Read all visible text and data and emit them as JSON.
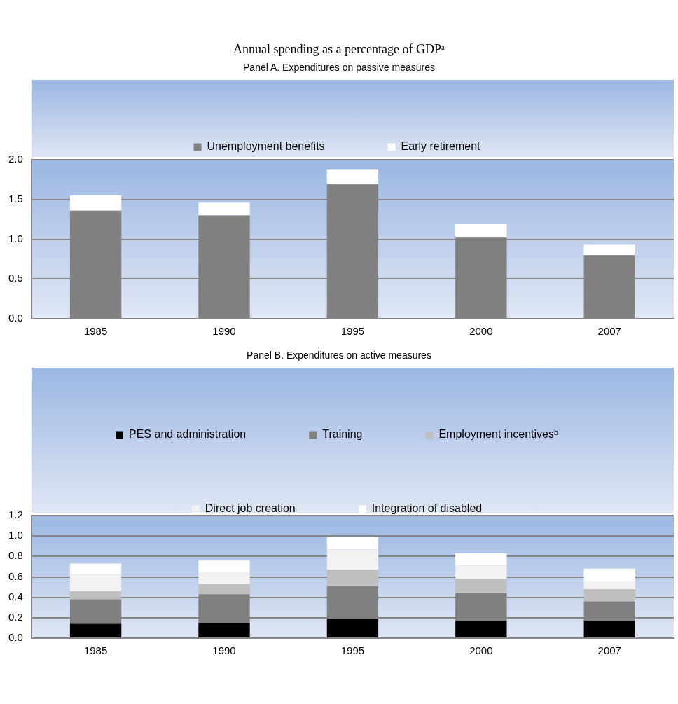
{
  "chart_data": [
    {
      "type": "bar",
      "title": "Annual spending as a percentage of GDPᵃ",
      "subtitle": "Panel A. Expenditures on passive measures",
      "categories": [
        "1985",
        "1990",
        "1995",
        "2000",
        "2007"
      ],
      "stacked": true,
      "series": [
        {
          "name": "Unemployment benefits",
          "color": "#808080",
          "values": [
            1.36,
            1.3,
            1.69,
            1.02,
            0.8
          ]
        },
        {
          "name": "Early retirement",
          "color": "#ffffff",
          "values": [
            0.19,
            0.16,
            0.19,
            0.17,
            0.13
          ]
        }
      ],
      "ylim": [
        0,
        2
      ],
      "yticks": [
        {
          "value": 0,
          "label": "0.0"
        },
        {
          "value": 0.5,
          "label": "0.5"
        },
        {
          "value": 1,
          "label": "1.0"
        },
        {
          "value": 1.5,
          "label": "1.5"
        },
        {
          "value": 2,
          "label": "2.0"
        }
      ],
      "grid": "y",
      "legend": "top"
    },
    {
      "type": "bar",
      "title": "Panel B. Expenditures on active measures",
      "categories": [
        "1985",
        "1990",
        "1995",
        "2000",
        "2007"
      ],
      "stacked": true,
      "series": [
        {
          "name": "PES and administration",
          "color": "#000000",
          "values": [
            0.14,
            0.15,
            0.19,
            0.17,
            0.17
          ]
        },
        {
          "name": "Training",
          "color": "#808080",
          "values": [
            0.24,
            0.28,
            0.32,
            0.27,
            0.19
          ]
        },
        {
          "name": "Employment incentivesᵇ",
          "color": "#bfbfbf",
          "values": [
            0.08,
            0.1,
            0.16,
            0.14,
            0.12
          ]
        },
        {
          "name": "Direct job creation",
          "color": "#f2f2f2",
          "values": [
            0.16,
            0.11,
            0.2,
            0.13,
            0.07
          ]
        },
        {
          "name": "Integration of disabled",
          "color": "#ffffff",
          "values": [
            0.11,
            0.12,
            0.12,
            0.12,
            0.13
          ]
        }
      ],
      "ylim": [
        0,
        1.2
      ],
      "yticks": [
        {
          "value": 0,
          "label": "0.0"
        },
        {
          "value": 0.2,
          "label": "0.2"
        },
        {
          "value": 0.4,
          "label": "0.4"
        },
        {
          "value": 0.6,
          "label": "0.6"
        },
        {
          "value": 0.8,
          "label": "0.8"
        },
        {
          "value": 1,
          "label": "1.0"
        },
        {
          "value": 1.2,
          "label": "1.2"
        }
      ],
      "grid": "y",
      "legend": "top"
    }
  ]
}
